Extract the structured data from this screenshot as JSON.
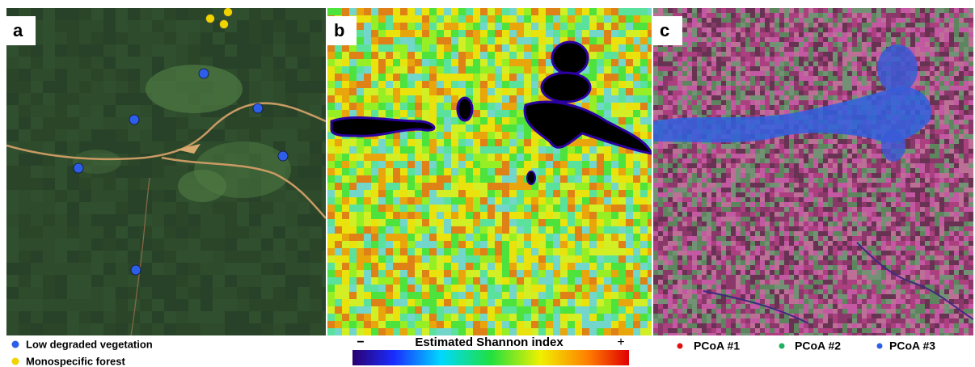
{
  "panels": [
    {
      "letter": "a",
      "legend": [
        "Low degraded vegetation",
        "Monospecific forest"
      ]
    },
    {
      "letter": "b",
      "colorbar": {
        "title": "Estimated Shannon index",
        "low": "−",
        "high": "+"
      }
    },
    {
      "letter": "c",
      "legend": [
        "PCoA #1",
        "PCoA #2",
        "PCoA #3"
      ]
    }
  ]
}
